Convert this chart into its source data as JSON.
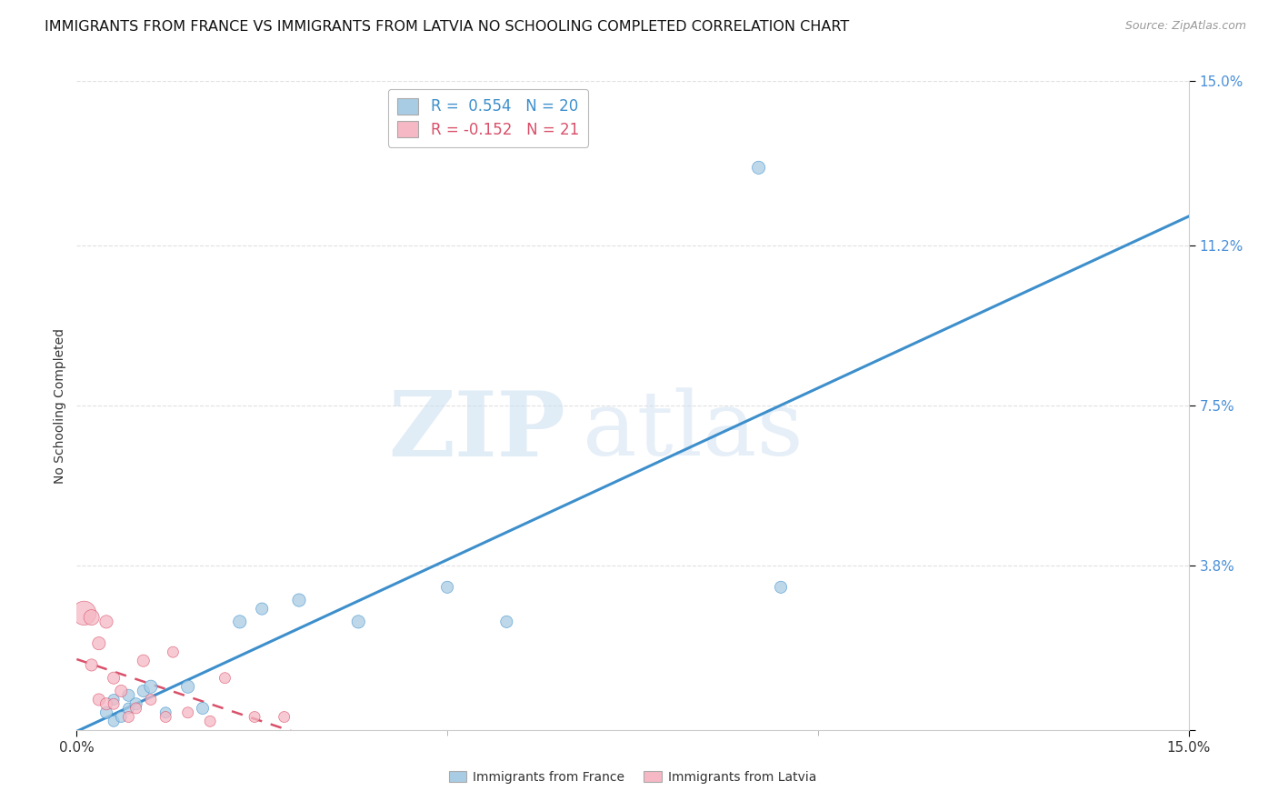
{
  "title": "IMMIGRANTS FROM FRANCE VS IMMIGRANTS FROM LATVIA NO SCHOOLING COMPLETED CORRELATION CHART",
  "source": "Source: ZipAtlas.com",
  "xlabel_france": "Immigrants from France",
  "xlabel_latvia": "Immigrants from Latvia",
  "ylabel": "No Schooling Completed",
  "watermark_zip": "ZIP",
  "watermark_atlas": "atlas",
  "xlim": [
    0.0,
    0.15
  ],
  "ylim": [
    0.0,
    0.15
  ],
  "yticks": [
    0.0,
    0.038,
    0.075,
    0.112,
    0.15
  ],
  "ytick_labels": [
    "",
    "3.8%",
    "7.5%",
    "11.2%",
    "15.0%"
  ],
  "xticks": [
    0.0,
    0.15
  ],
  "xtick_labels": [
    "0.0%",
    "15.0%"
  ],
  "france_dot_color": "#a8cce4",
  "latvia_dot_color": "#f5b8c4",
  "france_line_color": "#3d8fcc",
  "latvia_line_color": "#d9506a",
  "ytick_color": "#4a90d9",
  "R_france": 0.554,
  "N_france": 20,
  "R_latvia": -0.152,
  "N_latvia": 21,
  "france_x": [
    0.004,
    0.005,
    0.005,
    0.006,
    0.007,
    0.007,
    0.008,
    0.009,
    0.01,
    0.012,
    0.015,
    0.017,
    0.022,
    0.025,
    0.03,
    0.038,
    0.05,
    0.058,
    0.092,
    0.095
  ],
  "france_y": [
    0.004,
    0.002,
    0.007,
    0.003,
    0.005,
    0.008,
    0.006,
    0.009,
    0.01,
    0.004,
    0.01,
    0.005,
    0.025,
    0.028,
    0.03,
    0.025,
    0.033,
    0.025,
    0.13,
    0.033
  ],
  "france_sizes": [
    30,
    25,
    25,
    25,
    25,
    30,
    30,
    30,
    35,
    25,
    35,
    30,
    35,
    30,
    35,
    35,
    30,
    30,
    35,
    30
  ],
  "latvia_x": [
    0.001,
    0.002,
    0.002,
    0.003,
    0.003,
    0.004,
    0.004,
    0.005,
    0.005,
    0.006,
    0.007,
    0.008,
    0.009,
    0.01,
    0.012,
    0.013,
    0.015,
    0.018,
    0.02,
    0.024,
    0.028
  ],
  "latvia_y": [
    0.027,
    0.026,
    0.015,
    0.007,
    0.02,
    0.006,
    0.025,
    0.006,
    0.012,
    0.009,
    0.003,
    0.005,
    0.016,
    0.007,
    0.003,
    0.018,
    0.004,
    0.002,
    0.012,
    0.003,
    0.003
  ],
  "latvia_sizes": [
    120,
    50,
    30,
    30,
    35,
    30,
    35,
    25,
    30,
    30,
    25,
    25,
    30,
    25,
    25,
    25,
    25,
    25,
    25,
    25,
    25
  ],
  "background_color": "#ffffff",
  "grid_color": "#e0e0e0",
  "title_fontsize": 11.5,
  "axis_label_fontsize": 10,
  "tick_fontsize": 11,
  "legend_fontsize": 12
}
